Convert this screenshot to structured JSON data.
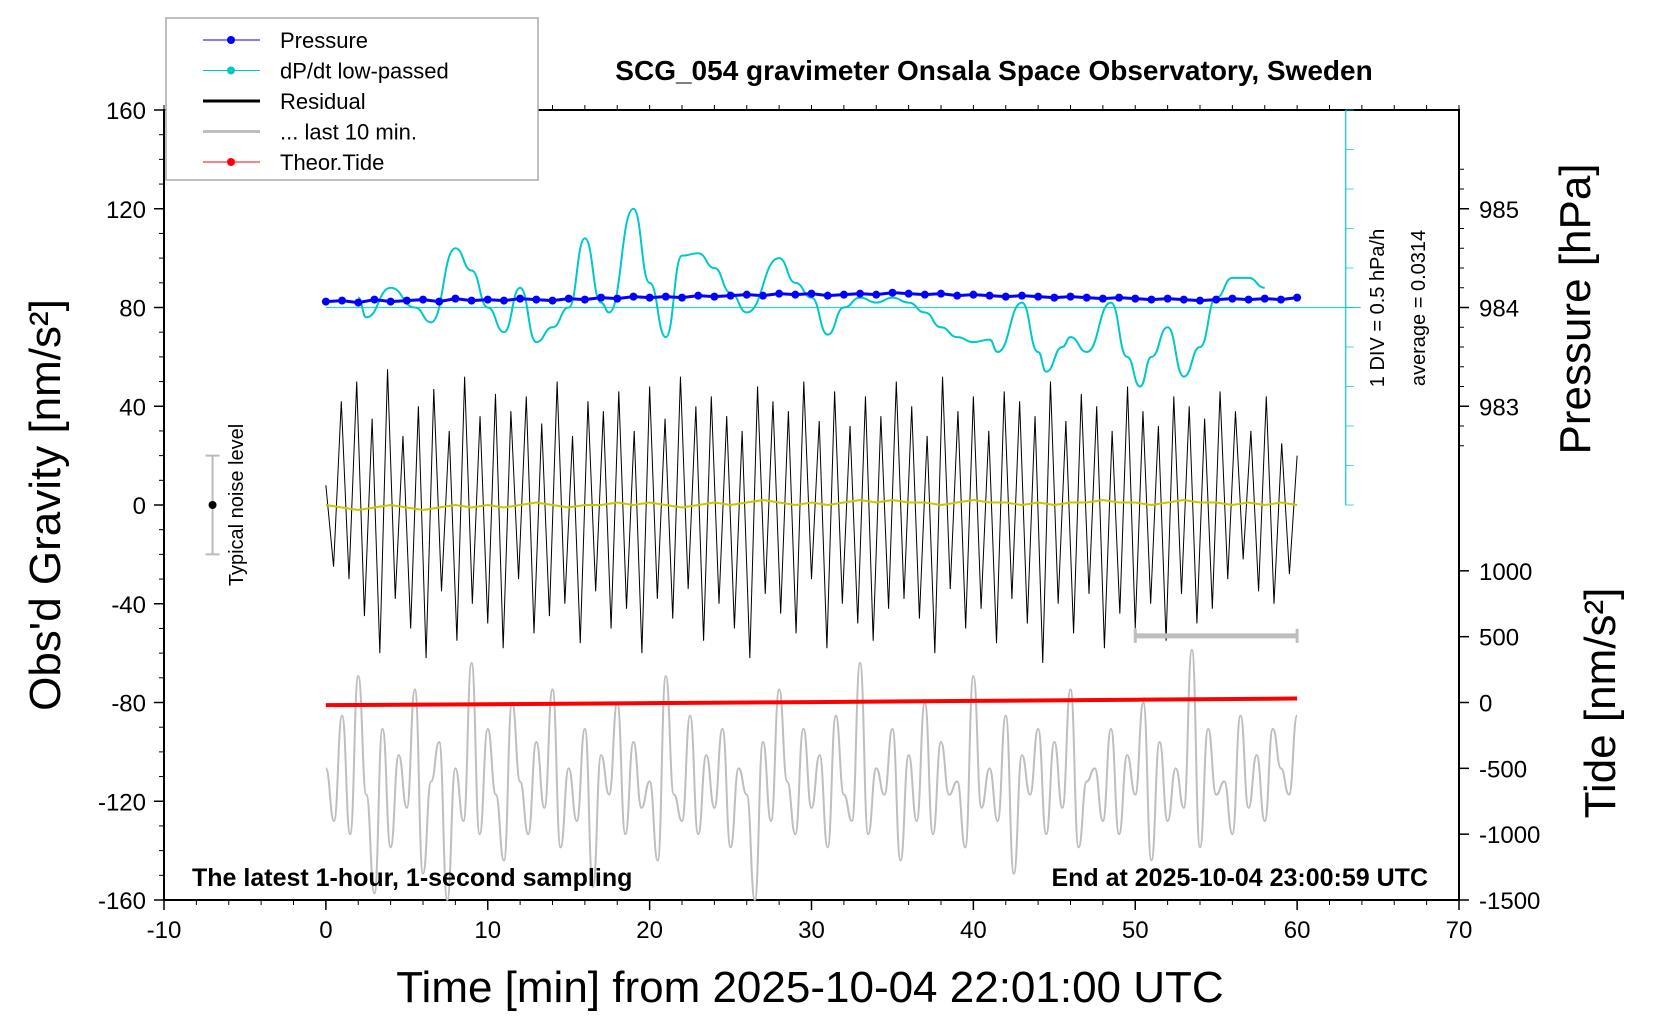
{
  "chart_data": {
    "type": "line",
    "title": "SCG_054 gravimeter Onsala Space Observatory, Sweden",
    "xlabel": "Time [min] from 2025-10-04 22:01:00 UTC",
    "ylabel": "Obs'd Gravity [nm/s²]",
    "ylabel_right_pressure": "Pressure [hPa]",
    "ylabel_right_tide": "Tide [nm/s²]",
    "xlim": [
      -10,
      70
    ],
    "ylim": [
      -160,
      160
    ],
    "x_ticks": [
      "-10",
      "0",
      "10",
      "20",
      "30",
      "40",
      "50",
      "60",
      "70"
    ],
    "y_ticks": [
      "160",
      "120",
      "80",
      "40",
      "0",
      "-40",
      "-80",
      "-120",
      "-160"
    ],
    "pressure_ticks": [
      "985",
      "984",
      "983"
    ],
    "pressure_range_hpa": [
      983,
      985
    ],
    "tide_ticks": [
      "1000",
      "500",
      "0",
      "-500",
      "-1000",
      "-1500"
    ],
    "annotation_left": "The latest 1-hour, 1-second sampling",
    "annotation_right": "End at 2025-10-04 23:00:59 UTC",
    "noise_label": "Typical noise level",
    "noise_level": {
      "x": -7,
      "center": 0,
      "halfwidth": 20
    },
    "dpdt_scale_label": "1 DIV = 0.5 hPa/h",
    "dpdt_average_label": "average = 0.0314",
    "last10_bar": {
      "x_start": 50,
      "x_end": 60,
      "y": -53
    },
    "legend": {
      "position": "top-left",
      "entries": [
        {
          "label": "Pressure",
          "color": "#0000ff"
        },
        {
          "label": "dP/dt low-passed",
          "color": "#00c8c8"
        },
        {
          "label": "Residual",
          "color": "#000000"
        },
        {
          "label": "... last 10 min.",
          "color": "#bebebe"
        },
        {
          "label": "Theor.Tide",
          "color": "#ff0000"
        }
      ]
    },
    "colors": {
      "pressure": "#0000ff",
      "dpdt": "#00c8c8",
      "residual": "#000000",
      "smoothed": "#c8c800",
      "last10": "#bebebe",
      "tide": "#ff0000"
    },
    "series": {
      "pressure_hpa": {
        "t_range": [
          0,
          60
        ],
        "values": [
          984.06,
          984.07,
          984.05,
          984.08,
          984.06,
          984.07,
          984.08,
          984.06,
          984.09,
          984.07,
          984.08,
          984.07,
          984.09,
          984.08,
          984.07,
          984.09,
          984.08,
          984.1,
          984.09,
          984.11,
          984.1,
          984.11,
          984.1,
          984.12,
          984.11,
          984.12,
          984.13,
          984.12,
          984.14,
          984.13,
          984.14,
          984.12,
          984.13,
          984.14,
          984.13,
          984.15,
          984.14,
          984.13,
          984.14,
          984.12,
          984.13,
          984.12,
          984.11,
          984.12,
          984.11,
          984.1,
          984.11,
          984.1,
          984.09,
          984.1,
          984.09,
          984.08,
          984.09,
          984.08,
          984.07,
          984.08,
          984.09,
          984.08,
          984.09,
          984.08,
          984.1
        ]
      },
      "dpdt": {
        "t": [
          2,
          2.5,
          4,
          5.5,
          6.5,
          8,
          9,
          10,
          11,
          12,
          13,
          14,
          15,
          16,
          17,
          17.5,
          19,
          20,
          21,
          22,
          23,
          24,
          25,
          26,
          28,
          29,
          30,
          31,
          32,
          33,
          34,
          35,
          36,
          37,
          38,
          39,
          40,
          41,
          41.5,
          43,
          44,
          44.5,
          45.5,
          46,
          47,
          48.5,
          49.5,
          50.3,
          51,
          52,
          53,
          54,
          55,
          56,
          57,
          58
        ],
        "values_gravity_units": [
          84,
          76,
          88,
          80,
          74,
          104,
          95,
          80,
          70,
          88,
          66,
          72,
          80,
          108,
          82,
          78,
          120,
          90,
          68,
          101,
          102,
          96,
          86,
          78,
          100,
          90,
          84,
          69,
          80,
          84,
          82,
          84,
          82,
          78,
          72,
          68,
          66,
          67,
          62,
          82,
          62,
          54,
          64,
          68,
          62,
          82,
          60,
          48,
          60,
          72,
          52,
          64,
          84,
          92,
          92,
          88
        ],
        "zero_line": 80
      },
      "residual": {
        "t_range": [
          0,
          60
        ],
        "values": [
          8,
          -25,
          42,
          -30,
          50,
          -45,
          35,
          -60,
          55,
          -38,
          28,
          -50,
          40,
          -62,
          47,
          -35,
          30,
          -55,
          52,
          -40,
          36,
          -48,
          45,
          -58,
          38,
          -30,
          44,
          -52,
          33,
          -45,
          50,
          -40,
          28,
          -56,
          42,
          -35,
          38,
          -50,
          46,
          -42,
          30,
          -60,
          48,
          -38,
          35,
          -46,
          52,
          -34,
          40,
          -55,
          44,
          -40,
          36,
          -50,
          30,
          -62,
          48,
          -36,
          42,
          -44,
          38,
          -52,
          50,
          -30,
          34,
          -58,
          46,
          -40,
          32,
          -48,
          44,
          -55,
          36,
          -42,
          50,
          -38,
          40,
          -46,
          28,
          -60,
          52,
          -34,
          38,
          -50,
          44,
          -42,
          30,
          -56,
          46,
          -38,
          42,
          -48,
          36,
          -64,
          50,
          -40,
          34,
          -52,
          45,
          -36,
          40,
          -58,
          30,
          -44,
          48,
          -50,
          38,
          -40,
          32,
          -55,
          44,
          -36,
          40,
          -48,
          35,
          -42,
          46,
          -30,
          38,
          -22,
          30,
          -35,
          44,
          -40,
          25,
          -28,
          20
        ]
      },
      "residual_smoothed": {
        "t_range": [
          0,
          60
        ],
        "values": [
          0,
          -1,
          -2,
          -1,
          0,
          -1,
          -2,
          -1,
          0,
          -1,
          0,
          -1,
          0,
          1,
          0,
          -1,
          0,
          0,
          1,
          0,
          1,
          0,
          -1,
          0,
          1,
          0,
          1,
          2,
          1,
          0,
          1,
          0,
          1,
          2,
          1,
          2,
          1,
          1,
          0,
          1,
          2,
          1,
          1,
          0,
          1,
          0,
          1,
          1,
          2,
          1,
          1,
          0,
          1,
          2,
          1,
          1,
          0,
          1,
          0,
          1,
          0
        ]
      },
      "last10_nm_s2": {
        "t_range": [
          0,
          60
        ],
        "values": [
          -500,
          -900,
          -100,
          -1000,
          200,
          -700,
          -1450,
          -200,
          -1100,
          -400,
          -800,
          100,
          -1300,
          -600,
          -300,
          -1500,
          -500,
          -900,
          300,
          -1000,
          -200,
          -700,
          -1200,
          0,
          -600,
          -1000,
          -300,
          -800,
          100,
          -1100,
          -500,
          -900,
          -200,
          -1400,
          -400,
          -700,
          0,
          -1000,
          -300,
          -800,
          -600,
          -1200,
          200,
          -700,
          -900,
          -100,
          -1000,
          -400,
          -800,
          -200,
          -1100,
          -500,
          -700,
          -1500,
          -300,
          -900,
          100,
          -600,
          -1000,
          -200,
          -800,
          -400,
          -1100,
          -100,
          -700,
          -900,
          300,
          -1000,
          -500,
          -700,
          -200,
          -1200,
          -400,
          -900,
          0,
          -1000,
          -300,
          -700,
          -600,
          -1100,
          200,
          -800,
          -500,
          -900,
          -100,
          -1300,
          -400,
          -700,
          -200,
          -1000,
          -300,
          -800,
          100,
          -1100,
          -600,
          -500,
          -900,
          -200,
          -1000,
          -400,
          -700,
          0,
          -1200,
          -300,
          -900,
          -500,
          -800,
          400,
          -1100,
          -200,
          -700,
          -600,
          -1000,
          -100,
          -800,
          -400,
          -900,
          -200,
          -500,
          -700,
          -100
        ]
      },
      "theoretical_tide_nm_s2": {
        "t": [
          0,
          10,
          20,
          30,
          40,
          50,
          60
        ],
        "values": [
          -20,
          -13,
          -5,
          3,
          12,
          21,
          30
        ]
      }
    }
  }
}
